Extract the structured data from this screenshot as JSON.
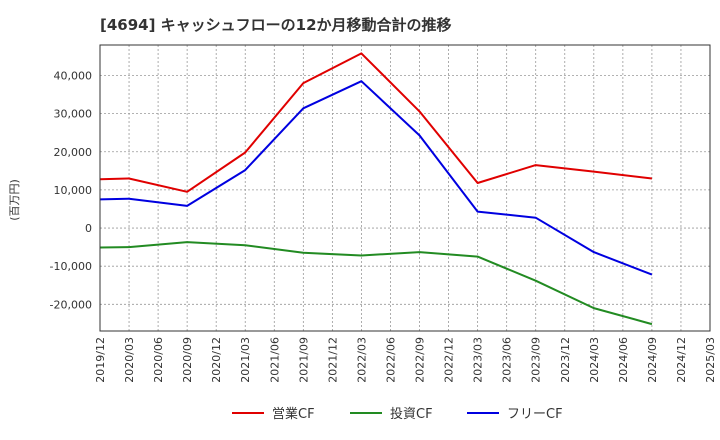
{
  "chart_data": {
    "type": "line",
    "title": "[4694]  キャッシュフローの12か月移動合計の推移",
    "ylabel": "(百万円)",
    "xlabel": "",
    "ylim": [
      -27000,
      48000
    ],
    "yticks": [
      -20000,
      -10000,
      0,
      10000,
      20000,
      30000,
      40000
    ],
    "ytick_labels": [
      "-20,000",
      "-10,000",
      "0",
      "10,000",
      "20,000",
      "30,000",
      "40,000"
    ],
    "categories": [
      "2019/12",
      "2020/03",
      "2020/06",
      "2020/09",
      "2020/12",
      "2021/03",
      "2021/06",
      "2021/09",
      "2021/12",
      "2022/03",
      "2022/06",
      "2022/09",
      "2022/12",
      "2023/03",
      "2023/06",
      "2023/09",
      "2023/12",
      "2024/03",
      "2024/06",
      "2024/09",
      "2024/12",
      "2025/03"
    ],
    "series": [
      {
        "name": "営業CF",
        "color": "#e00000",
        "points": [
          [
            0,
            12800
          ],
          [
            1,
            13000
          ],
          [
            3,
            9500
          ],
          [
            5,
            19800
          ],
          [
            7,
            38000
          ],
          [
            9,
            45800
          ],
          [
            11,
            30600
          ],
          [
            13,
            11800
          ],
          [
            15,
            16500
          ],
          [
            17,
            14800
          ],
          [
            19,
            13000
          ]
        ]
      },
      {
        "name": "投資CF",
        "color": "#228b22",
        "points": [
          [
            0,
            -5100
          ],
          [
            1,
            -5000
          ],
          [
            3,
            -3700
          ],
          [
            5,
            -4500
          ],
          [
            7,
            -6500
          ],
          [
            9,
            -7200
          ],
          [
            11,
            -6300
          ],
          [
            13,
            -7500
          ],
          [
            15,
            -13800
          ],
          [
            17,
            -21000
          ],
          [
            19,
            -25200
          ]
        ]
      },
      {
        "name": "フリーCF",
        "color": "#0000e0",
        "points": [
          [
            0,
            7500
          ],
          [
            1,
            7700
          ],
          [
            3,
            5800
          ],
          [
            5,
            15200
          ],
          [
            7,
            31400
          ],
          [
            9,
            38500
          ],
          [
            11,
            24300
          ],
          [
            13,
            4300
          ],
          [
            15,
            2700
          ],
          [
            17,
            -6300
          ],
          [
            19,
            -12200
          ]
        ]
      }
    ],
    "legend": "bottom",
    "grid": true
  }
}
